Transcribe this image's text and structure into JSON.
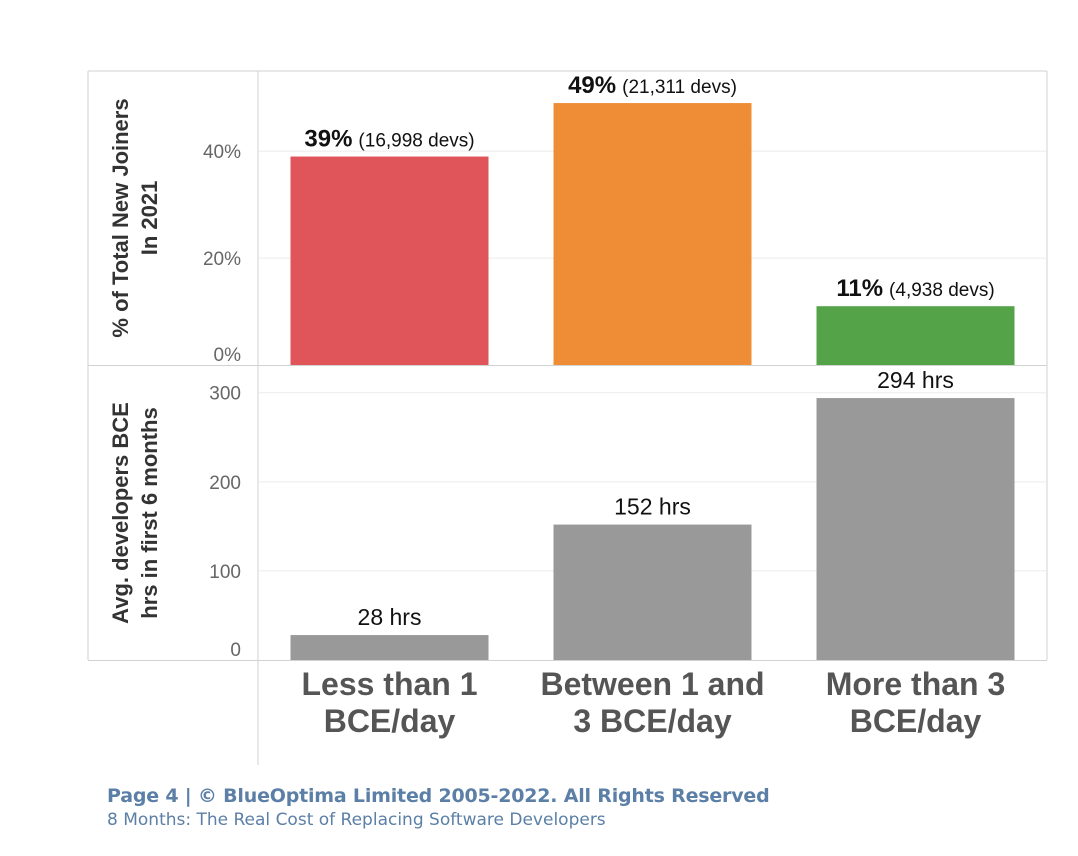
{
  "chart_data": [
    {
      "type": "bar",
      "categories": [
        "Less than 1 BCE/day",
        "Between 1 and 3 BCE/day",
        "More than 3 BCE/day"
      ],
      "ylabel": [
        "% of Total New Joiners",
        "In 2021"
      ],
      "values": [
        39,
        49,
        11
      ],
      "unit": "%",
      "ylim": [
        0,
        55
      ],
      "yticks": [
        0,
        20,
        40
      ],
      "yticklabels": [
        "0%",
        "20%",
        "40%"
      ],
      "data_labels": [
        {
          "bold": "39%",
          "normal": "(16,998 devs)"
        },
        {
          "bold": "49%",
          "normal": "(21,311 devs)"
        },
        {
          "bold": "11%",
          "normal": "(4,938 devs)"
        }
      ],
      "colors": [
        "#e05559",
        "#ef8c36",
        "#55a349"
      ]
    },
    {
      "type": "bar",
      "categories": [
        "Less than 1 BCE/day",
        "Between 1 and 3 BCE/day",
        "More than 3 BCE/day"
      ],
      "ylabel": [
        "Avg. developers BCE",
        "hrs in first 6 months"
      ],
      "values": [
        28,
        152,
        294
      ],
      "ylim": [
        0,
        330
      ],
      "yticks": [
        0,
        100,
        200,
        300
      ],
      "yticklabels": [
        "0",
        "100",
        "200",
        "300"
      ],
      "data_labels": [
        "28 hrs",
        "152 hrs",
        "294 hrs"
      ],
      "colors": [
        "#999999",
        "#999999",
        "#999999"
      ]
    }
  ],
  "x_axis": {
    "labels": [
      [
        "Less than 1",
        "BCE/day"
      ],
      [
        "Between 1 and",
        "3 BCE/day"
      ],
      [
        "More than 3",
        "BCE/day"
      ]
    ]
  },
  "footer": {
    "line1": "Page 4  |  © BlueOptima Limited 2005-2022. All Rights Reserved",
    "line2": "8 Months: The Real Cost of Replacing Software Developers"
  }
}
